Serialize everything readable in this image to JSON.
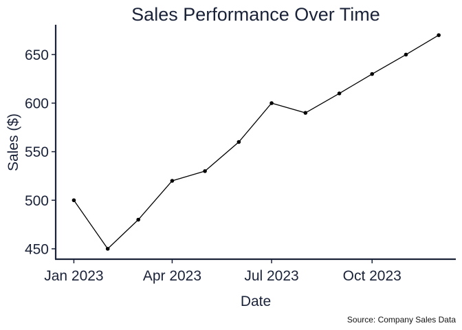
{
  "chart_data": {
    "type": "line",
    "title": "Sales Performance Over Time",
    "xlabel": "Date",
    "ylabel": "Sales ($)",
    "caption": "Source: Company Sales Data",
    "x": [
      "2023-01-01",
      "2023-02-01",
      "2023-03-01",
      "2023-04-01",
      "2023-05-01",
      "2023-06-01",
      "2023-07-01",
      "2023-08-01",
      "2023-09-01",
      "2023-10-01",
      "2023-11-01",
      "2023-12-01"
    ],
    "series": [
      {
        "values": [
          500,
          450,
          480,
          520,
          530,
          560,
          600,
          590,
          610,
          630,
          650,
          670
        ]
      }
    ],
    "yticks": [
      450,
      500,
      550,
      600,
      650
    ],
    "xticks": [
      {
        "date": "2023-01-01",
        "label": "Jan 2023"
      },
      {
        "date": "2023-04-01",
        "label": "Apr 2023"
      },
      {
        "date": "2023-07-01",
        "label": "Jul 2023"
      },
      {
        "date": "2023-10-01",
        "label": "Oct 2023"
      }
    ],
    "ylim": [
      440,
      680
    ],
    "xlim": [
      "2022-12-16",
      "2023-12-16"
    ],
    "grid": false,
    "colors": {
      "line": "#000000",
      "axis": "#1a2238",
      "text": "#1a2238"
    }
  }
}
